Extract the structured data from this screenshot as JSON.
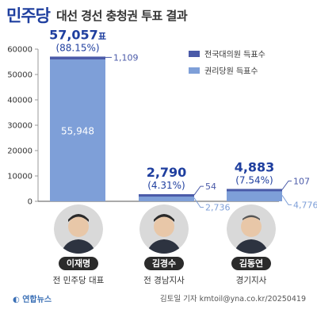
{
  "header": {
    "party": "민주당",
    "title": "대선 경선 충청권 투표 결과"
  },
  "chart_data": {
    "type": "bar",
    "stacked": true,
    "categories": [
      "이재명",
      "김경수",
      "김동연"
    ],
    "series": [
      {
        "name": "권리당원 득표수",
        "values": [
          55948,
          2736,
          4776
        ],
        "color": "#7e9fd8"
      },
      {
        "name": "전국대의원 득표수",
        "values": [
          1109,
          54,
          107
        ],
        "color": "#4a5aa8"
      }
    ],
    "segment_labels": [
      {
        "bottom": "55,948",
        "top": "1,109"
      },
      {
        "bottom": "2,736",
        "top": "54"
      },
      {
        "bottom": "4,776",
        "top": "107"
      }
    ],
    "totals": [
      {
        "value": "57,057",
        "unit": "표",
        "pct": "(88.15%)"
      },
      {
        "value": "2,790",
        "unit": "",
        "pct": "(4.31%)"
      },
      {
        "value": "4,883",
        "unit": "",
        "pct": "(7.54%)"
      }
    ],
    "y_ticks": [
      "0",
      "10000",
      "20000",
      "30000",
      "40000",
      "50000",
      "60000"
    ],
    "ylim": [
      0,
      60000
    ],
    "grid": false,
    "legend_position": "top-right"
  },
  "candidates": [
    {
      "name": "이재명",
      "role": "전 민주당 대표"
    },
    {
      "name": "김경수",
      "role": "전 경남지사"
    },
    {
      "name": "김동연",
      "role": "경기지사"
    }
  ],
  "footer": {
    "logo": "연합뉴스",
    "credit": "김토일 기자 kmtoil@yna.co.kr/20250419"
  }
}
